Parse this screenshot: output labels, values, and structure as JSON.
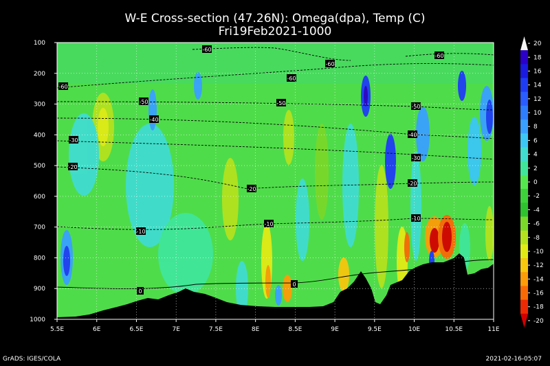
{
  "chart_data": {
    "type": "heatmap",
    "title": "W-E Cross-section (47.26N): Omega(dpa), Temp (C)",
    "subtitle": "Fri19Feb2021-1000",
    "x_ticks": [
      "5.5E",
      "6E",
      "6.5E",
      "7E",
      "7.5E",
      "8E",
      "8.5E",
      "9E",
      "9.5E",
      "10E",
      "10.5E",
      "11E"
    ],
    "x_range": [
      5.5,
      11.0
    ],
    "y_ticks": [
      100,
      200,
      300,
      400,
      500,
      600,
      700,
      800,
      900,
      1000
    ],
    "y_range": [
      100,
      1000
    ],
    "colorbar": {
      "levels": [
        20,
        18,
        16,
        14,
        12,
        10,
        8,
        6,
        4,
        2,
        0,
        -2,
        -4,
        -6,
        -8,
        -10,
        -12,
        -14,
        -16,
        -18,
        -20
      ],
      "colors": [
        "#f7f7f7",
        "#2b00c8",
        "#1a1ae0",
        "#1f3cf5",
        "#2a5cff",
        "#2e7dff",
        "#3aa0ff",
        "#3cc6f5",
        "#40dcd0",
        "#40e69a",
        "#55e84e",
        "#3ed23a",
        "#2fc22f",
        "#7ad82a",
        "#b4e21e",
        "#e2ea16",
        "#f7c60e",
        "#fb9c08",
        "#f96a06",
        "#ee2a04",
        "#d40000"
      ]
    },
    "temperature_contours": [
      {
        "value": -60,
        "labels": [
          "-60",
          "-60",
          "-60",
          "-60"
        ]
      },
      {
        "value": -50,
        "labels": [
          "-50",
          "-50",
          "-50"
        ]
      },
      {
        "value": -40,
        "labels": [
          "-40",
          "-40"
        ]
      },
      {
        "value": -30,
        "labels": [
          "-30",
          "-30"
        ]
      },
      {
        "value": -20,
        "labels": [
          "-20",
          "-20",
          "-20"
        ]
      },
      {
        "value": -10,
        "labels": [
          "-10",
          "-10",
          "-10"
        ]
      },
      {
        "value": 0,
        "labels": [
          "0",
          "0"
        ]
      }
    ],
    "grid": true
  },
  "footer": {
    "left": "GrADS: IGES/COLA",
    "right": "2021-02-16-05:07"
  }
}
